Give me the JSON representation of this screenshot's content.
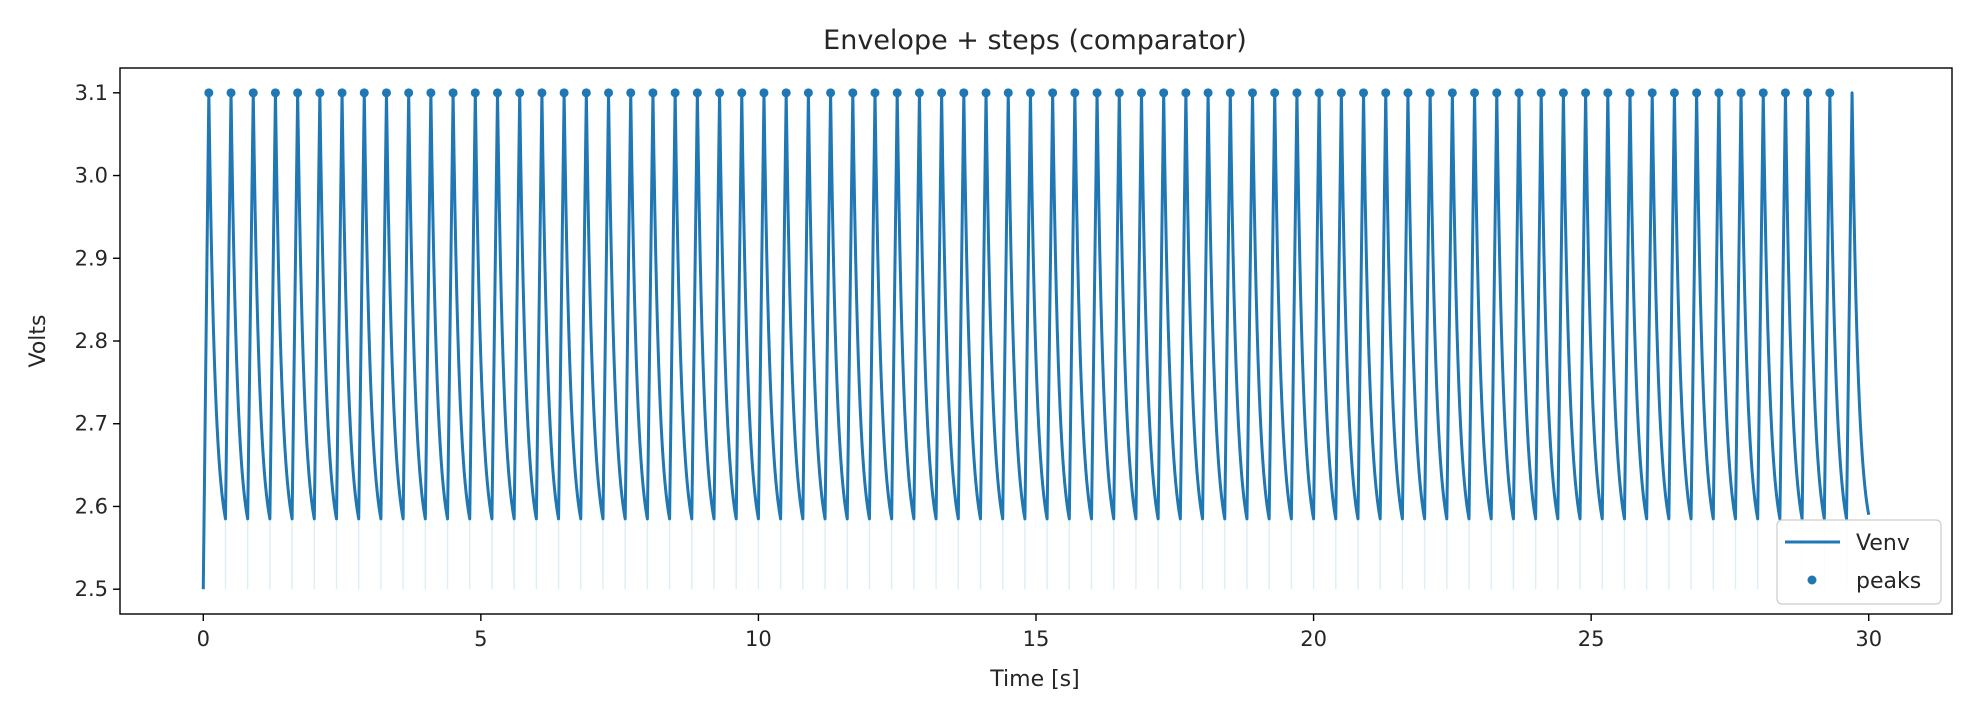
{
  "chart_data": {
    "type": "line",
    "title": "Envelope + steps (comparator)",
    "xlabel": "Time [s]",
    "ylabel": "Volts",
    "xlim": [
      -1.5,
      31.5
    ],
    "ylim": [
      2.47,
      3.13
    ],
    "xticks": [
      0,
      5,
      10,
      15,
      20,
      25,
      30
    ],
    "yticks": [
      2.5,
      2.6,
      2.7,
      2.8,
      2.9,
      3.0,
      3.1
    ],
    "legend": {
      "position": "bottom-right",
      "entries": [
        {
          "label": "Venv",
          "kind": "line"
        },
        {
          "label": "peaks",
          "kind": "marker"
        }
      ]
    },
    "colors": {
      "series": "#1f77b4",
      "steps": "#c8e3ee"
    },
    "envelope": {
      "start_value": 2.5,
      "peak_value": 3.1,
      "trough_value": 2.585,
      "start_time": 0,
      "end_time": 30,
      "end_value": 2.59,
      "cycle_count": 75,
      "first_peak_time": 0.1,
      "peak_spacing": 0.4,
      "rise_time": 0.1
    },
    "series": [
      {
        "name": "Venv",
        "kind": "line"
      },
      {
        "name": "peaks",
        "kind": "scatter",
        "times_rule": "every rising peak except the last",
        "value": 3.1
      }
    ],
    "steps": {
      "bottom": 2.5,
      "top": 2.585,
      "times_rule": "at each trough"
    }
  }
}
